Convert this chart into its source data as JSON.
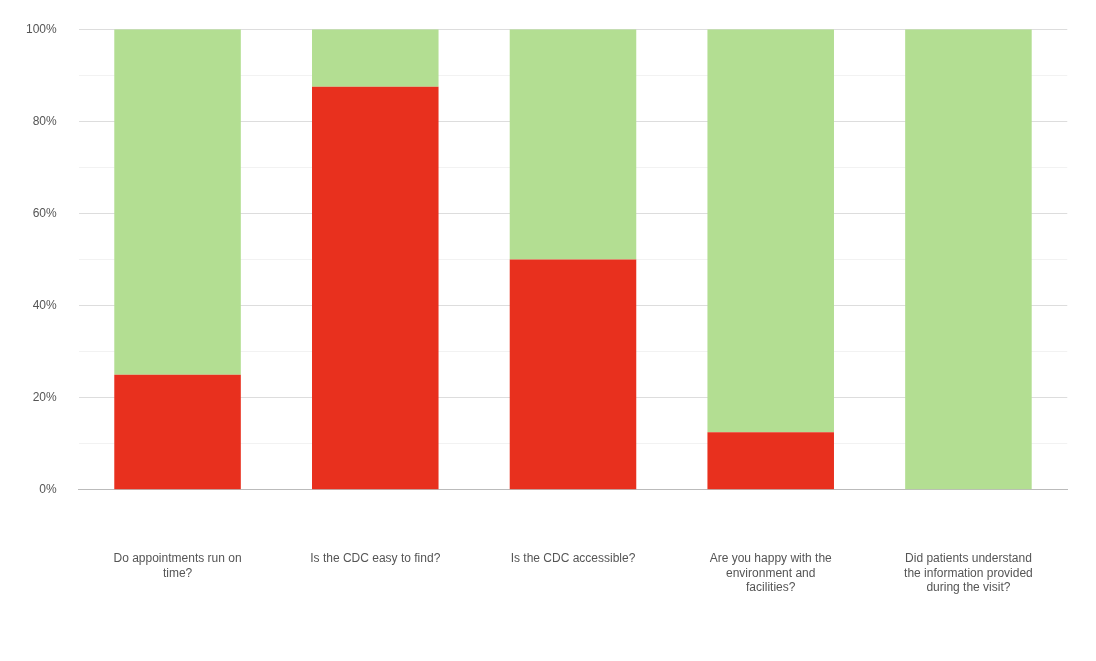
{
  "chart_data": {
    "type": "bar",
    "stacked": true,
    "categories": [
      "Do appointments run on time?",
      "Is the CDC easy to find?",
      "Is the CDC accessible?",
      "Are you happy with the environment and facilities?",
      "Did patients understand the information provided during the visit?"
    ],
    "series": [
      {
        "color": "#e8301e",
        "values": [
          25,
          87.5,
          50,
          12.5,
          0
        ]
      },
      {
        "color": "#b3de92",
        "values": [
          75,
          12.5,
          50,
          87.5,
          100
        ]
      }
    ],
    "ylim": [
      0,
      100
    ],
    "yticks": [
      {
        "value": 0,
        "label": "0%"
      },
      {
        "value": 10,
        "label": null
      },
      {
        "value": 20,
        "label": "20%"
      },
      {
        "value": 30,
        "label": null
      },
      {
        "value": 40,
        "label": "40%"
      },
      {
        "value": 50,
        "label": null
      },
      {
        "value": 60,
        "label": "60%"
      },
      {
        "value": 70,
        "label": null
      },
      {
        "value": 80,
        "label": "80%"
      },
      {
        "value": 90,
        "label": null
      },
      {
        "value": 100,
        "label": "100%"
      }
    ],
    "grid": "y",
    "legend": false
  }
}
